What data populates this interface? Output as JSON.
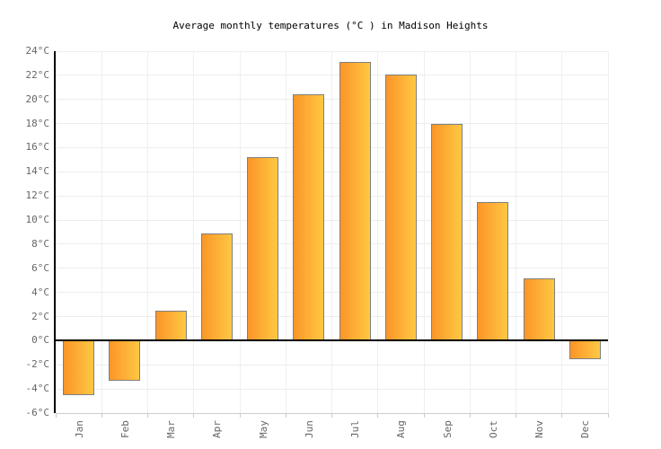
{
  "header": {
    "title": "Average monthly temperatures (°C ) in Madison Heights"
  },
  "chart_data": {
    "type": "bar",
    "title": "Average monthly temperatures (°C ) in Madison Heights",
    "categories": [
      "Jan",
      "Feb",
      "Mar",
      "Apr",
      "May",
      "Jun",
      "Jul",
      "Aug",
      "Sep",
      "Oct",
      "Nov",
      "Dec"
    ],
    "values": [
      -4.5,
      -3.3,
      2.5,
      8.9,
      15.2,
      20.4,
      23.1,
      22.1,
      18.0,
      11.5,
      5.2,
      -1.5
    ],
    "xlabel": "",
    "ylabel": "",
    "ylim": [
      -6,
      24
    ],
    "ytick_step": 2,
    "ytick_suffix": "°C",
    "grid": true,
    "legend_position": "none"
  },
  "colors": {
    "bar_gradient_left": "#FB9528",
    "bar_gradient_right": "#FFC843",
    "bar_border": "#7F7F7F",
    "axis": "#000000",
    "grid": "#EDEDED",
    "baseline": "#CCCCCC",
    "tick_label": "#666666",
    "title": "#000000"
  }
}
